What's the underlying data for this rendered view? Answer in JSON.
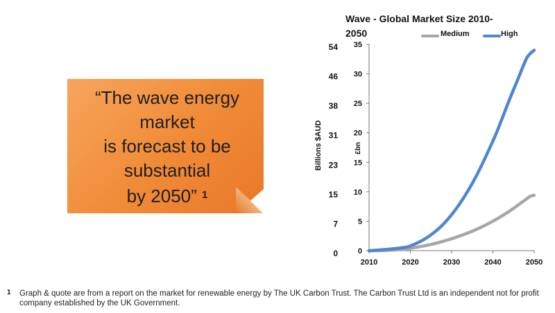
{
  "quote": {
    "text": "“The wave energy\nmarket\nis forecast to be\nsubstantial\nby 2050”",
    "ref": "1"
  },
  "footnote": {
    "marker": "1",
    "text": "Graph & quote are from a report on the market for renewable energy by The UK  Carbon Trust. The Carbon Trust Ltd is an independent not for profit company established by the UK Government."
  },
  "chart_data": {
    "type": "line",
    "title": "Wave - Global Market Size 2010-\n2050",
    "ylabel_inner": "£bn",
    "ylabel_outer": "Billions $AUD",
    "xlim": [
      2010,
      2050
    ],
    "ylim": [
      0,
      35
    ],
    "x_ticks": [
      "2010",
      "2020",
      "2030",
      "2040",
      "2050"
    ],
    "y_ticks": [
      "0",
      "5",
      "10",
      "15",
      "20",
      "25",
      "30",
      "35"
    ],
    "y_ticks_aud": [
      "0",
      "7",
      "15",
      "23",
      "31",
      "38",
      "46",
      "54"
    ],
    "grid": false,
    "legend_position": "top-right",
    "series": [
      {
        "name": "Medium",
        "color": "#a6a6a6",
        "x": [
          2010,
          2014,
          2018,
          2020,
          2024,
          2028,
          2032,
          2036,
          2040,
          2044,
          2046,
          2048,
          2049,
          2050
        ],
        "y": [
          0,
          0.05,
          0.2,
          0.4,
          0.9,
          1.6,
          2.5,
          3.6,
          5.0,
          6.7,
          7.7,
          8.7,
          9.2,
          9.4
        ]
      },
      {
        "name": "High",
        "color": "#4f86d0",
        "x": [
          2010,
          2014,
          2018,
          2020,
          2024,
          2028,
          2032,
          2036,
          2040,
          2042,
          2044,
          2046,
          2048,
          2049,
          2050
        ],
        "y": [
          0,
          0.2,
          0.5,
          0.8,
          2.2,
          4.5,
          8.0,
          12.7,
          18.6,
          22.0,
          25.6,
          29.0,
          32.4,
          33.4,
          34.0
        ]
      }
    ]
  }
}
